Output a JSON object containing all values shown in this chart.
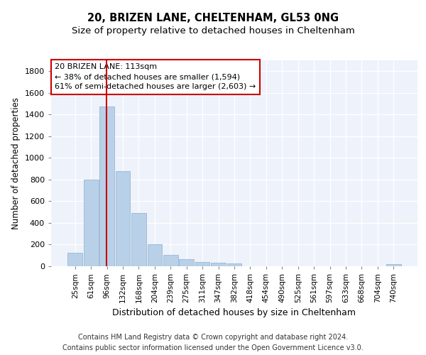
{
  "title1": "20, BRIZEN LANE, CHELTENHAM, GL53 0NG",
  "title2": "Size of property relative to detached houses in Cheltenham",
  "xlabel": "Distribution of detached houses by size in Cheltenham",
  "ylabel": "Number of detached properties",
  "categories": [
    "25sqm",
    "61sqm",
    "96sqm",
    "132sqm",
    "168sqm",
    "204sqm",
    "239sqm",
    "275sqm",
    "311sqm",
    "347sqm",
    "382sqm",
    "418sqm",
    "454sqm",
    "490sqm",
    "525sqm",
    "561sqm",
    "597sqm",
    "633sqm",
    "668sqm",
    "704sqm",
    "740sqm"
  ],
  "values": [
    125,
    800,
    1475,
    880,
    490,
    205,
    105,
    65,
    40,
    35,
    25,
    0,
    0,
    0,
    0,
    0,
    0,
    0,
    0,
    0,
    20
  ],
  "bar_color": "#b8d0e8",
  "bar_edge_color": "#9ab8d4",
  "vline_color": "#cc0000",
  "vline_x_index": 2.5,
  "annotation_text": "20 BRIZEN LANE: 113sqm\n← 38% of detached houses are smaller (1,594)\n61% of semi-detached houses are larger (2,603) →",
  "annotation_box_facecolor": "#ffffff",
  "annotation_box_edgecolor": "#cc0000",
  "ylim": [
    0,
    1900
  ],
  "yticks": [
    0,
    200,
    400,
    600,
    800,
    1000,
    1200,
    1400,
    1600,
    1800
  ],
  "bg_color": "#eef2fa",
  "footer": "Contains HM Land Registry data © Crown copyright and database right 2024.\nContains public sector information licensed under the Open Government Licence v3.0.",
  "title1_fontsize": 10.5,
  "title2_fontsize": 9.5,
  "ylabel_fontsize": 8.5,
  "xlabel_fontsize": 9,
  "annotation_fontsize": 8,
  "footer_fontsize": 7,
  "tick_fontsize": 7.5,
  "ytick_fontsize": 8
}
